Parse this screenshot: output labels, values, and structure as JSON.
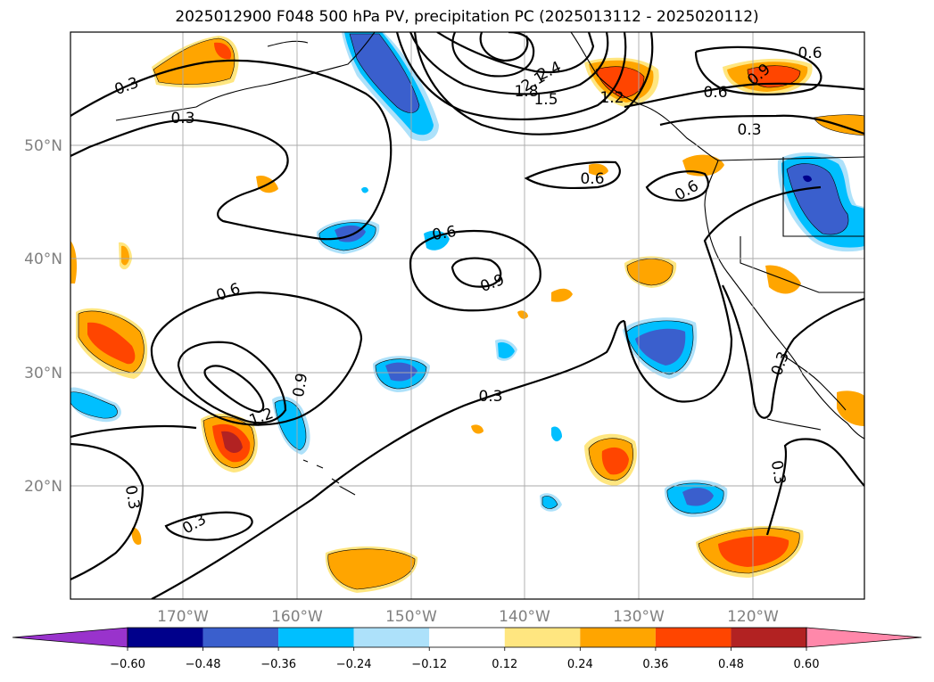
{
  "title": "2025012900 F048 500 hPa PV, precipitation PC (2025013112 - 2025020112)",
  "map": {
    "lon_labels": [
      "170°W",
      "160°W",
      "150°W",
      "140°W",
      "130°W",
      "120°W"
    ],
    "lat_labels": [
      "50°N",
      "40°N",
      "30°N",
      "20°N"
    ],
    "contour_labels": [
      "0.3",
      "0.3",
      "0.6",
      "0.9",
      "1.2",
      "1.5",
      "1.8",
      "2.1",
      "2.4",
      "0.6",
      "0.3",
      "0.6",
      "0.6",
      "0.6",
      "0.9",
      "0.6",
      "1.2",
      "0.9",
      "0.3",
      "0.3",
      "0.3",
      "0.3",
      "0.3",
      "0.9",
      "0.6"
    ]
  },
  "colorbar": {
    "ticks": [
      "−0.60",
      "−0.48",
      "−0.36",
      "−0.24",
      "−0.12",
      "0.12",
      "0.24",
      "0.36",
      "0.48",
      "0.60"
    ],
    "colors": [
      "#9933CC",
      "#00008B",
      "#3A5FCD",
      "#00BFFF",
      "#ADE1FA",
      "#FFFFFF",
      "#FFE680",
      "#FFA500",
      "#FF4500",
      "#B22222",
      "#FF88AA"
    ]
  }
}
